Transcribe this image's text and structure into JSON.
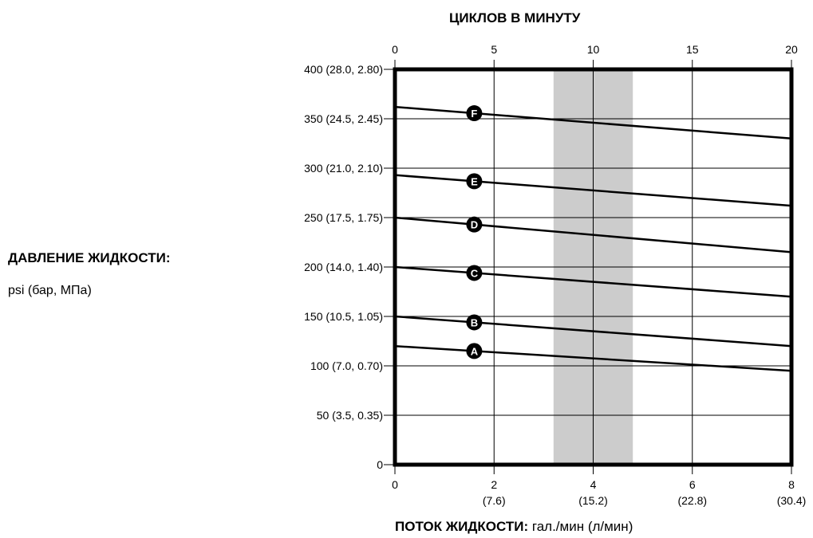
{
  "chart_data": {
    "type": "line",
    "title": "",
    "top_axis": {
      "label": "ЦИКЛОВ В МИНУТУ",
      "ticks": [
        "0",
        "5",
        "10",
        "15",
        "20"
      ],
      "range": [
        0,
        20
      ]
    },
    "x_axis": {
      "label_bold": "ПОТОК ЖИДКОСТИ:",
      "label_unit": "гал./мин (л/мин)",
      "range": [
        0,
        8
      ],
      "ticks": [
        {
          "value": 0,
          "label": "0",
          "sub": ""
        },
        {
          "value": 2,
          "label": "2",
          "sub": "(7.6)"
        },
        {
          "value": 4,
          "label": "4",
          "sub": "(15.2)"
        },
        {
          "value": 6,
          "label": "6",
          "sub": "(22.8)"
        },
        {
          "value": 8,
          "label": "8",
          "sub": "(30.4)"
        }
      ]
    },
    "y_axis": {
      "label_bold": "ДАВЛЕНИЕ ЖИДКОСТИ:",
      "label_unit": "psi (бар, МПа)",
      "range": [
        0,
        400
      ],
      "ticks": [
        {
          "value": 0,
          "label": "0"
        },
        {
          "value": 50,
          "label": "50 (3.5, 0.35)"
        },
        {
          "value": 100,
          "label": "100 (7.0, 0.70)"
        },
        {
          "value": 150,
          "label": "150 (10.5, 1.05)"
        },
        {
          "value": 200,
          "label": "200 (14.0, 1.40)"
        },
        {
          "value": 250,
          "label": "250 (17.5, 1.75)"
        },
        {
          "value": 300,
          "label": "300 (21.0, 2.10)"
        },
        {
          "value": 350,
          "label": "350 (24.5, 2.45)"
        },
        {
          "value": 400,
          "label": "400 (28.0, 2.80)"
        }
      ]
    },
    "shaded_band": {
      "x_start": 3.2,
      "x_end": 4.8,
      "color": "#cccccc"
    },
    "marker_x": 1.6,
    "series": [
      {
        "name": "A",
        "x": [
          0,
          8
        ],
        "y": [
          120,
          95
        ]
      },
      {
        "name": "B",
        "x": [
          0,
          8
        ],
        "y": [
          150,
          120
        ]
      },
      {
        "name": "C",
        "x": [
          0,
          8
        ],
        "y": [
          200,
          170
        ]
      },
      {
        "name": "D",
        "x": [
          0,
          8
        ],
        "y": [
          250,
          215
        ]
      },
      {
        "name": "E",
        "x": [
          0,
          8
        ],
        "y": [
          293,
          262
        ]
      },
      {
        "name": "F",
        "x": [
          0,
          8
        ],
        "y": [
          362,
          330
        ]
      }
    ],
    "grid": true
  }
}
